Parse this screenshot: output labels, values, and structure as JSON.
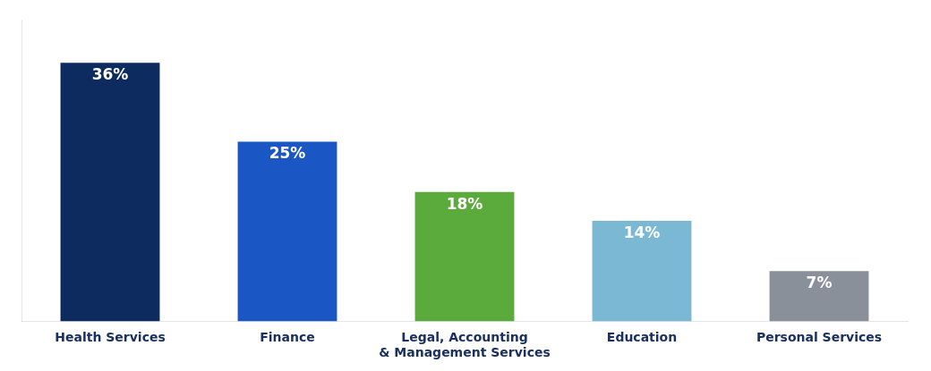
{
  "chart_data": {
    "type": "bar",
    "categories": [
      "Health Services",
      "Finance",
      "Legal, Accounting\n& Management Services",
      "Education",
      "Personal Services"
    ],
    "values": [
      36,
      25,
      18,
      14,
      7
    ],
    "value_labels": [
      "36%",
      "25%",
      "18%",
      "14%",
      "7%"
    ],
    "colors": [
      "#0d2b5e",
      "#1a56c4",
      "#5aaa3c",
      "#7bb8d4",
      "#8a9099"
    ],
    "ylim": [
      0,
      42
    ],
    "grid": false,
    "data_labels": true,
    "tick_labels": "x"
  }
}
